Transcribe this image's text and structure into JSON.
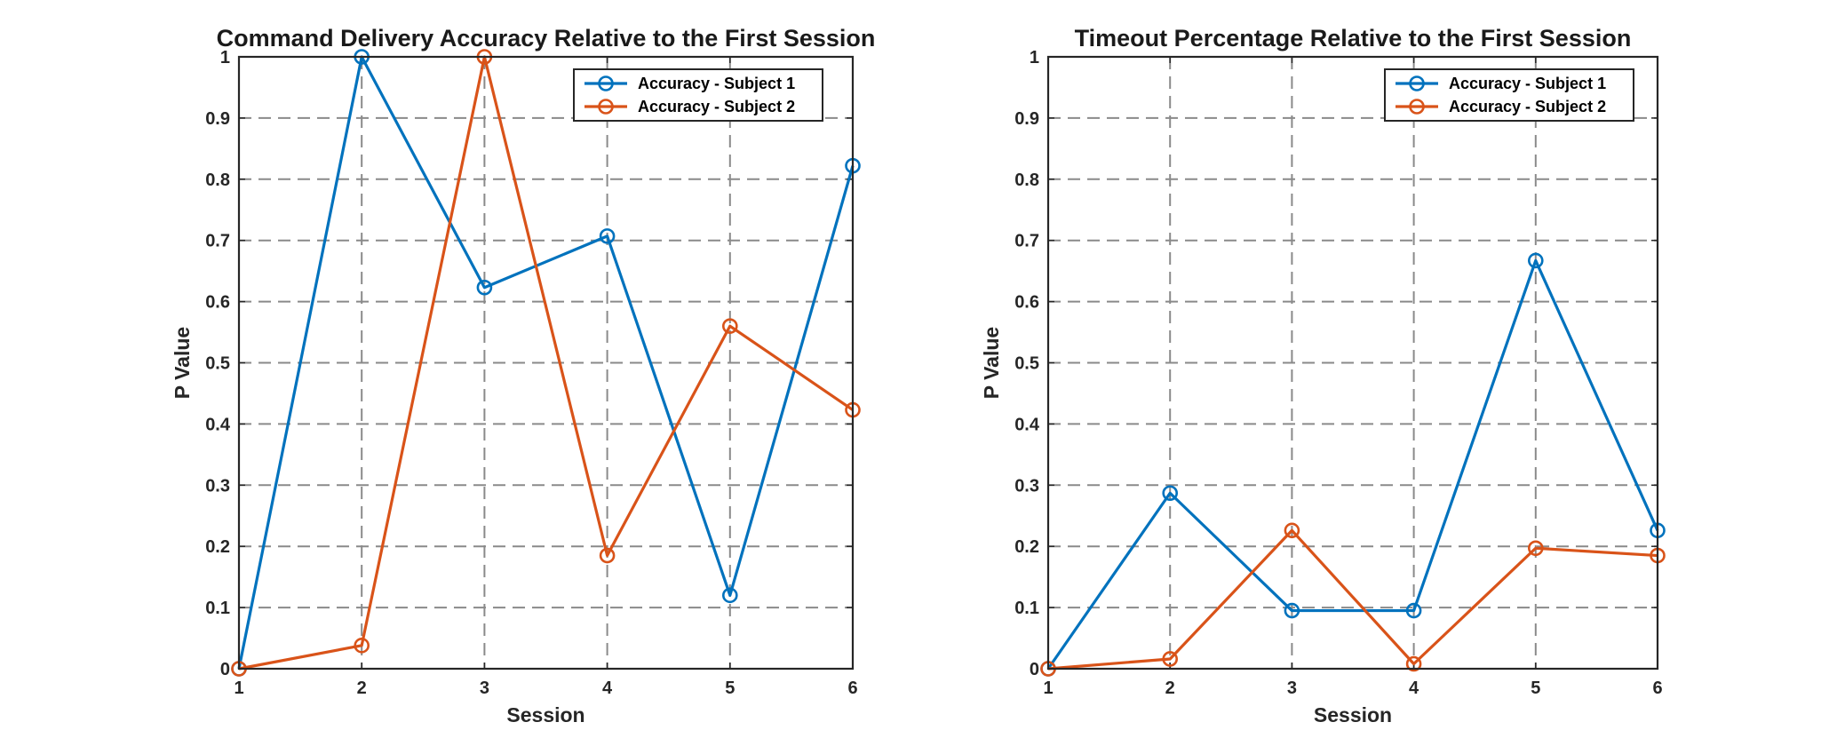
{
  "chart_data": [
    {
      "type": "line",
      "title": "Command Delivery Accuracy Relative to the First Session",
      "xlabel": "Session",
      "ylabel": "P Value",
      "x": [
        1,
        2,
        3,
        4,
        5,
        6
      ],
      "xlim": [
        1,
        6
      ],
      "ylim": [
        0,
        1
      ],
      "xticks": [
        "1",
        "2",
        "3",
        "4",
        "5",
        "6"
      ],
      "yticks": [
        "0",
        "0.1",
        "0.2",
        "0.3",
        "0.4",
        "0.5",
        "0.6",
        "0.7",
        "0.8",
        "0.9",
        "1"
      ],
      "grid": true,
      "legend_position": "top-right",
      "series": [
        {
          "name": "Accuracy - Subject 1",
          "color": "#0072BD",
          "marker": "circle",
          "values": [
            0,
            1.0,
            0.623,
            0.707,
            0.12,
            0.822
          ]
        },
        {
          "name": "Accuracy - Subject 2",
          "color": "#D95319",
          "marker": "circle",
          "values": [
            0,
            0.038,
            1.0,
            0.185,
            0.56,
            0.423
          ]
        }
      ]
    },
    {
      "type": "line",
      "title": "Timeout Percentage Relative to the First Session",
      "xlabel": "Session",
      "ylabel": "P Value",
      "x": [
        1,
        2,
        3,
        4,
        5,
        6
      ],
      "xlim": [
        1,
        6
      ],
      "ylim": [
        0,
        1
      ],
      "xticks": [
        "1",
        "2",
        "3",
        "4",
        "5",
        "6"
      ],
      "yticks": [
        "0",
        "0.1",
        "0.2",
        "0.3",
        "0.4",
        "0.5",
        "0.6",
        "0.7",
        "0.8",
        "0.9",
        "1"
      ],
      "grid": true,
      "legend_position": "top-right",
      "series": [
        {
          "name": "Accuracy - Subject 1",
          "color": "#0072BD",
          "marker": "circle",
          "values": [
            0,
            0.287,
            0.095,
            0.095,
            0.667,
            0.226
          ]
        },
        {
          "name": "Accuracy - Subject 2",
          "color": "#D95319",
          "marker": "circle",
          "values": [
            0,
            0.016,
            0.226,
            0.008,
            0.197,
            0.185
          ]
        }
      ]
    }
  ]
}
